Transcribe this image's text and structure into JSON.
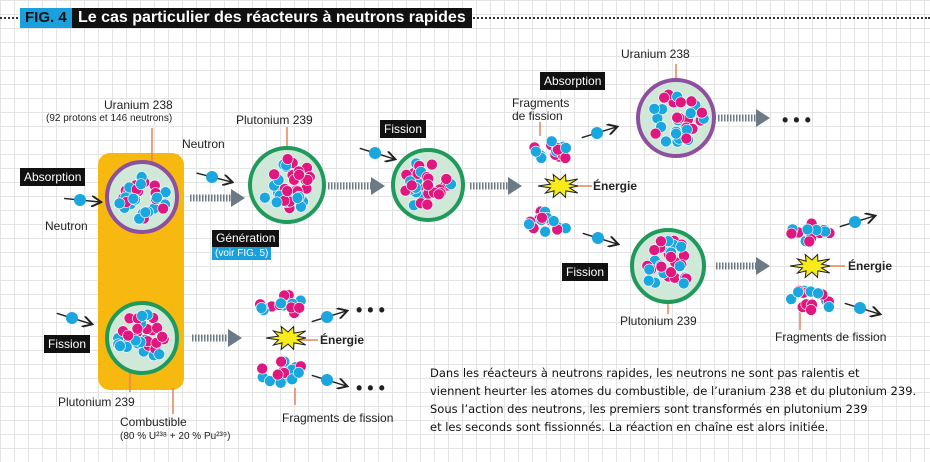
{
  "header": {
    "fig_tag": "FIG. 4",
    "title": "Le cas particulier des réacteurs à neutrons rapides"
  },
  "labels": {
    "uranium_238": "Uranium 238",
    "uranium_238_detail": "(92 protons et 146 neutrons)",
    "absorption": "Absorption",
    "neutron": "Neutron",
    "fission": "Fission",
    "plutonium_239": "Plutonium 239",
    "combustible": "Combustible",
    "combustible_detail": "(80 % U²³⁸ + 20 % Pu²³⁹)",
    "generation": "Génération",
    "voir_fig": "(voir FIG. 5)",
    "fragments_de_fission": "Fragments de fission",
    "fragments_line1": "Fragments",
    "fragments_line2": "de fission",
    "energie": "Énergie",
    "ellipsis": "• • •"
  },
  "paragraph": [
    "Dans les réacteurs à neutrons rapides, les neutrons ne sont pas ralentis et",
    "viennent heurter les atomes du combustible, de l’uranium 238 et du plutonium 239.",
    "Sous l’action des neutrons, les premiers sont transformés en plutonium 239",
    "et les seconds sont fissionnés. La réaction en chaîne est alors initiée."
  ],
  "colors": {
    "proton": "#e0177f",
    "neutron": "#1aa7e0",
    "uranium_ring": "#8e4fa0",
    "plutonium_ring": "#1f9a5a",
    "fuel": "#f7b90f",
    "energy": "#f7ec1a",
    "accent": "#1aa0dc",
    "arrow": "#6b7a85"
  }
}
